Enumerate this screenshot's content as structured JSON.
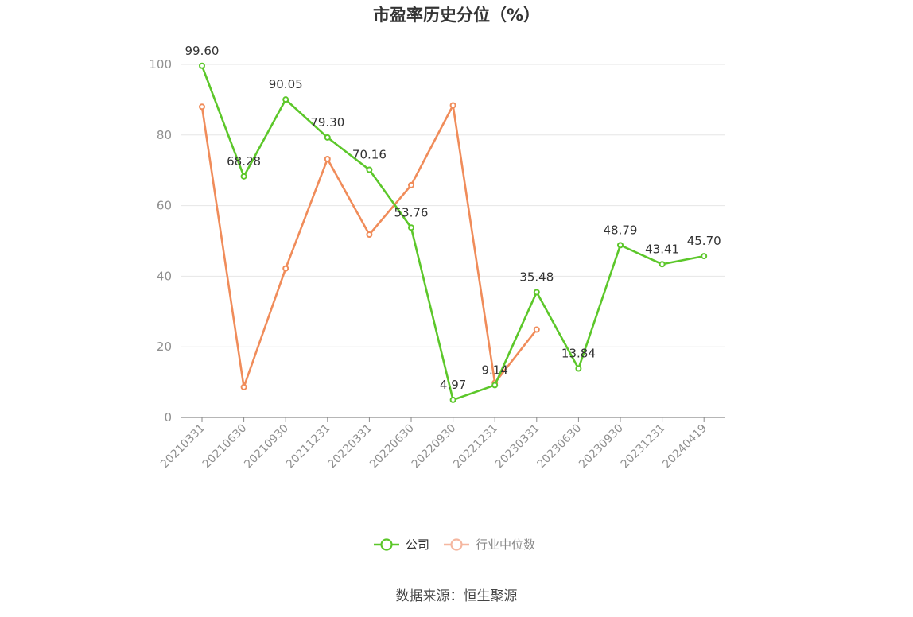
{
  "chart_data": {
    "type": "line",
    "title": "市盈率历史分位（%）",
    "categories": [
      "20210331",
      "20210630",
      "20210930",
      "20211231",
      "20220331",
      "20220630",
      "20220930",
      "20221231",
      "20230331",
      "20230630",
      "20230930",
      "20231231",
      "20240419"
    ],
    "ylim": [
      0,
      100
    ],
    "yticks": [
      0,
      20,
      40,
      60,
      80,
      100
    ],
    "grid": true,
    "legend_position": "bottom",
    "series": [
      {
        "name": "公司",
        "color": "#5cc72a",
        "values": [
          99.6,
          68.28,
          90.05,
          79.3,
          70.16,
          53.76,
          4.97,
          9.14,
          35.48,
          13.84,
          48.79,
          43.41,
          45.7
        ],
        "labels": [
          "99.60",
          "68.28",
          "90.05",
          "79.30",
          "70.16",
          "53.76",
          "4.97",
          "9.14",
          "35.48",
          "13.84",
          "48.79",
          "43.41",
          "45.70"
        ]
      },
      {
        "name": "行业中位数",
        "color": "#f08c5a",
        "values": [
          88.0,
          8.6,
          42.2,
          73.2,
          51.8,
          65.8,
          88.4,
          9.8,
          24.9,
          null,
          null,
          null,
          null
        ]
      }
    ]
  },
  "source": "数据来源：恒生聚源"
}
